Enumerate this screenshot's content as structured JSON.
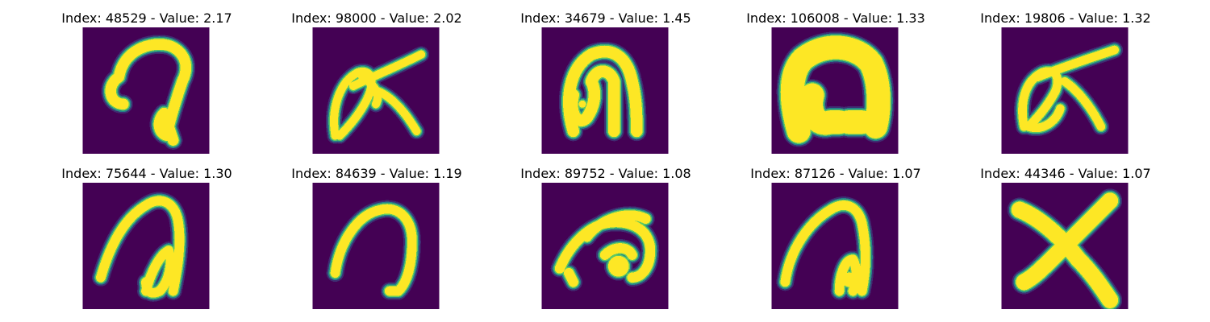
{
  "colors": {
    "background": "#440154",
    "stroke_core": "#fde725",
    "stroke_mid": "#5ec962",
    "stroke_edge": "#21918c",
    "stroke_outer": "#3b528b"
  },
  "panels": [
    {
      "title": "Index: 48529 - Value: 2.17",
      "glyph": "hook-curl"
    },
    {
      "title": "Index: 98000 - Value: 2.02",
      "glyph": "loop-k"
    },
    {
      "title": "Index: 34679 - Value: 1.45",
      "glyph": "loop-n"
    },
    {
      "title": "Index: 106008 - Value: 1.33",
      "glyph": "thick-arch"
    },
    {
      "title": "Index: 19806 - Value: 1.32",
      "glyph": "loop-k-2"
    },
    {
      "title": "Index: 75644 - Value: 1.30",
      "glyph": "arch-curl"
    },
    {
      "title": "Index: 84639 - Value: 1.19",
      "glyph": "arch"
    },
    {
      "title": "Index: 89752 - Value: 1.08",
      "glyph": "arch-blob"
    },
    {
      "title": "Index: 87126 - Value: 1.07",
      "glyph": "arch-curl-2"
    },
    {
      "title": "Index: 44346 - Value: 1.07",
      "glyph": "cross"
    }
  ]
}
